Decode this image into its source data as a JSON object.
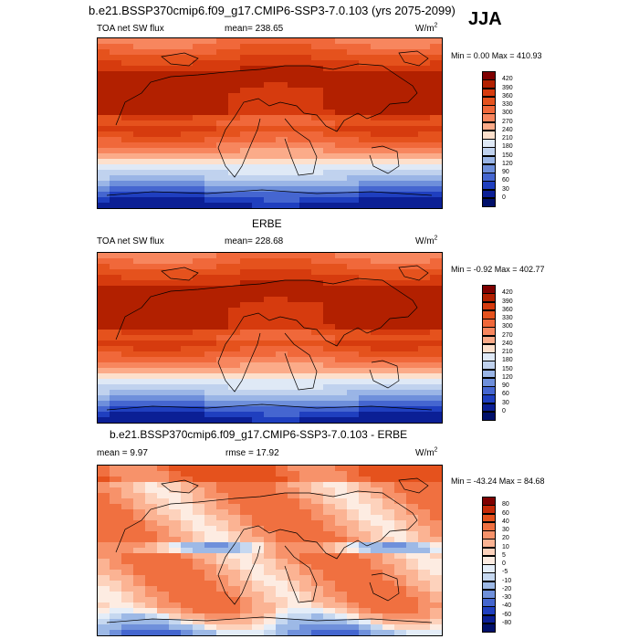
{
  "header": {
    "title": "b.e21.BSSP370cmip6.f09_g17.CMIP6-SSP3-7.0.103 (yrs 2075-2099)",
    "season": "JJA"
  },
  "chart_data": [
    {
      "type": "heatmap",
      "title": "",
      "variable": "TOA net SW flux",
      "mean_label": "mean= 238.65",
      "units": "W/m",
      "units_exp": "2",
      "minmax": "Min =   0.00 Max = 410.93",
      "colorbar_levels": [
        "420",
        "390",
        "360",
        "330",
        "300",
        "270",
        "240",
        "210",
        "180",
        "150",
        "120",
        "90",
        "60",
        "30",
        "0"
      ],
      "colors": [
        "#7f0000",
        "#b22000",
        "#d63b0e",
        "#e5521d",
        "#f0683a",
        "#f7865e",
        "#fbab89",
        "#fde0cc",
        "#dfe9f6",
        "#c0d2ee",
        "#9ab5e6",
        "#6e8fdb",
        "#4566d0",
        "#1f3fbf",
        "#0b1f95",
        "#00106a"
      ]
    },
    {
      "type": "heatmap",
      "title": "ERBE",
      "variable": "TOA net SW flux",
      "mean_label": "mean= 228.68",
      "units": "W/m",
      "units_exp": "2",
      "minmax": "Min =  -0.92 Max = 402.77",
      "colorbar_levels": [
        "420",
        "390",
        "360",
        "330",
        "300",
        "270",
        "240",
        "210",
        "180",
        "150",
        "120",
        "90",
        "60",
        "30",
        "0"
      ],
      "colors": [
        "#7f0000",
        "#b22000",
        "#d63b0e",
        "#e5521d",
        "#f0683a",
        "#f7865e",
        "#fbab89",
        "#fde0cc",
        "#dfe9f6",
        "#c0d2ee",
        "#9ab5e6",
        "#6e8fdb",
        "#4566d0",
        "#1f3fbf",
        "#0b1f95",
        "#00106a"
      ]
    },
    {
      "type": "heatmap",
      "title": "b.e21.BSSP370cmip6.f09_g17.CMIP6-SSP3-7.0.103 - ERBE",
      "mean_label": "mean =   9.97",
      "rmse_label": "rmse =  17.92",
      "units": "W/m",
      "units_exp": "2",
      "minmax": "Min = -43.24 Max =  84.68",
      "colorbar_levels": [
        "80",
        "60",
        "40",
        "30",
        "20",
        "10",
        "5",
        "0",
        "-5",
        "-10",
        "-20",
        "-30",
        "-40",
        "-60",
        "-80"
      ],
      "colors": [
        "#7f0000",
        "#c62a08",
        "#e5521d",
        "#f07040",
        "#f7926a",
        "#fbb393",
        "#fdd2bc",
        "#fdece2",
        "#e4edf8",
        "#c6d8f0",
        "#9db9e6",
        "#6f90db",
        "#4466cf",
        "#1f3fbf",
        "#0b1f95",
        "#00106a"
      ]
    }
  ]
}
